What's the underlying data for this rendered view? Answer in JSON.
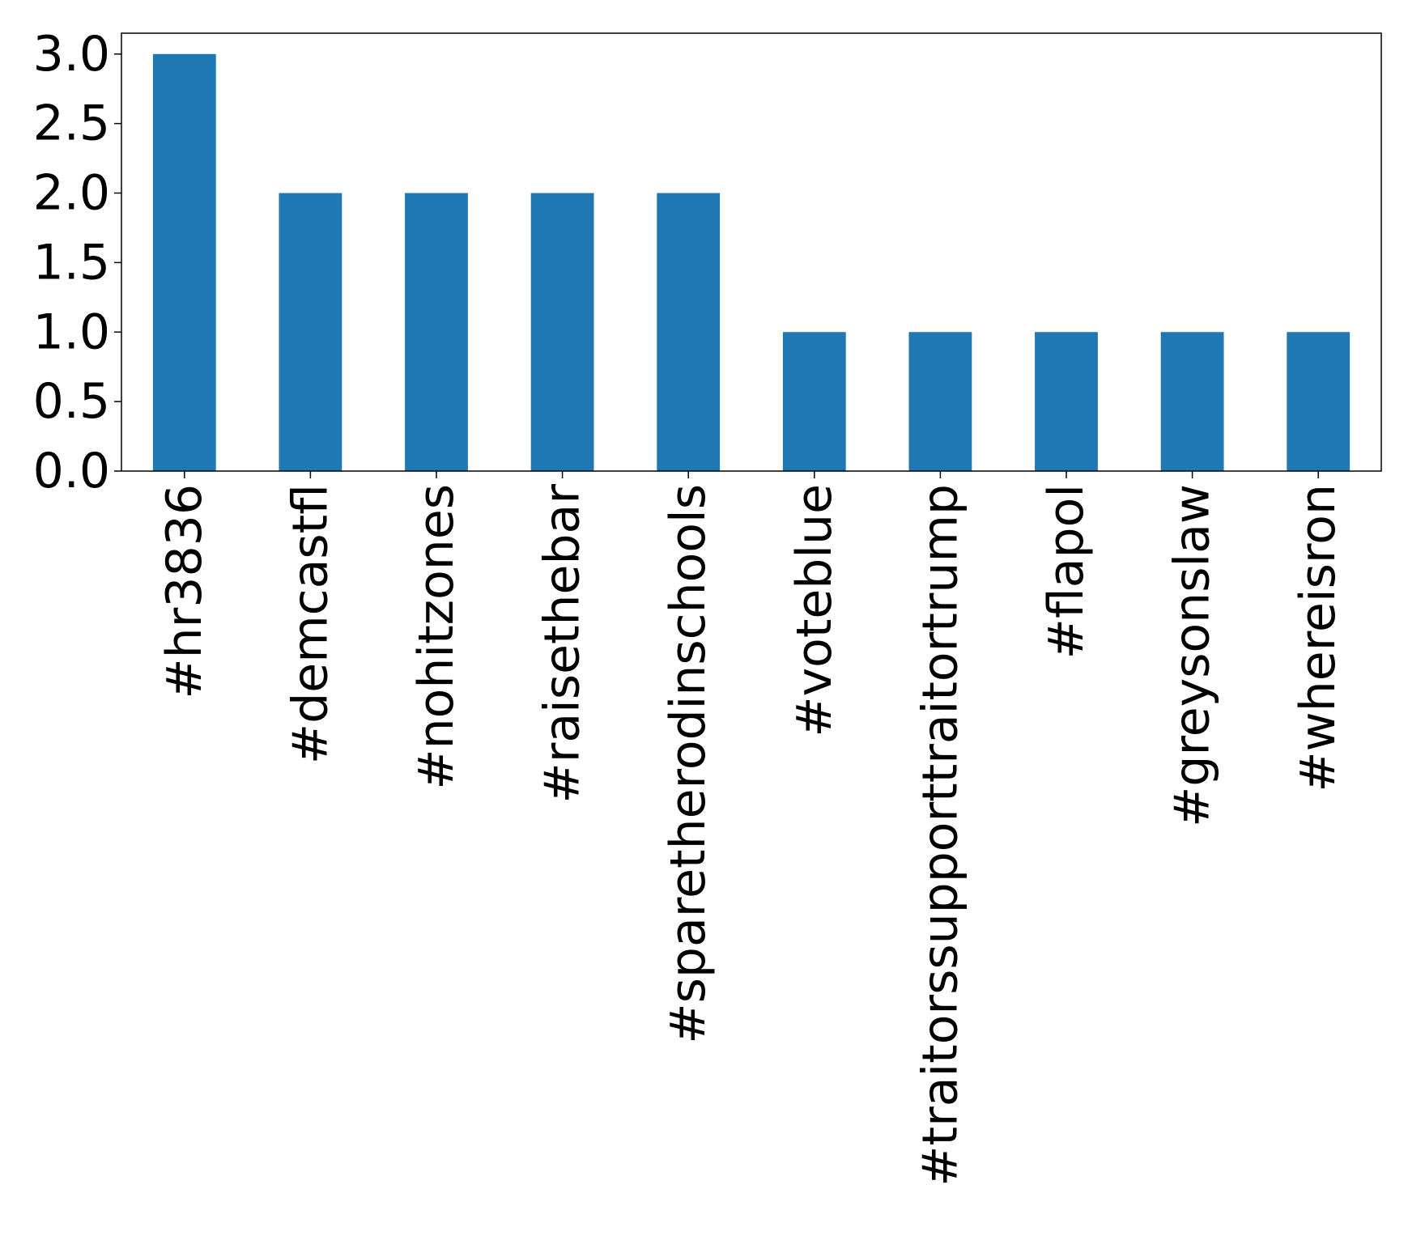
{
  "chart_data": {
    "type": "bar",
    "categories": [
      "#hr3836",
      "#demcastfl",
      "#nohitzones",
      "#raisethebar",
      "#sparetherodinschools",
      "#voteblue",
      "#traitorssupporttraitortrump",
      "#flapol",
      "#greysonslaw",
      "#whereisron"
    ],
    "values": [
      3,
      2,
      2,
      2,
      2,
      1,
      1,
      1,
      1,
      1
    ],
    "ylim": [
      0,
      3.15
    ],
    "yticks": [
      0.0,
      0.5,
      1.0,
      1.5,
      2.0,
      2.5,
      3.0
    ],
    "ytick_labels": [
      "0.0",
      "0.5",
      "1.0",
      "1.5",
      "2.0",
      "2.5",
      "3.0"
    ],
    "title": "",
    "xlabel": "",
    "ylabel": "",
    "grid": false,
    "legend": "none",
    "bar_color": "#1f77b4"
  }
}
